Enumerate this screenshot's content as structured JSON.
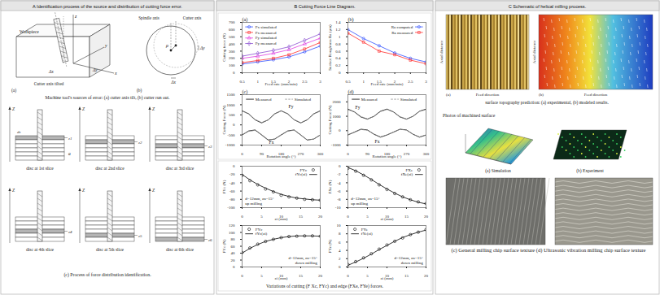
{
  "panels": {
    "A": {
      "title": "A Identification process of the source and distribution of cutting force error.",
      "fig_a": {
        "tag": "(a)",
        "workpiece": "Workpiece",
        "x": "x",
        "y": "y",
        "z": "z",
        "dx": "Δx",
        "dy": "Δy",
        "tilt": "Cutter axis tilted"
      },
      "fig_b": {
        "tag": "(b)",
        "spindle": "Spindle axis",
        "cutter": "Cutter axis",
        "rho": "ρ",
        "dx": "Δx",
        "dy": "Δy"
      },
      "caption_ab": "Machine tool's sources of error: (a) cutter axis tilt, (b) cutter run out.",
      "slices": {
        "axis": "Z",
        "depth": "a",
        "dz": "dz",
        "items": [
          {
            "label": "disc at 1st slice",
            "z": "z1"
          },
          {
            "label": "disc at 2nd slice",
            "z": "z2"
          },
          {
            "label": "disc at 3rd slice",
            "z": "z3"
          },
          {
            "label": "disc at 4th slice",
            "z": "z4"
          },
          {
            "label": "disc at 5th slice",
            "z": "z5"
          },
          {
            "label": "disc at 6th slice",
            "z": "z6"
          }
        ]
      },
      "caption_c": "(c) Process of force distribution identification."
    },
    "B": {
      "title": "B Cutting Force Line Diagram.",
      "caption": "Variations of cutting (F Xc, FYc) and edge (FXe, FYe) forces."
    },
    "C": {
      "title": "C Schematic of helical milling process.",
      "topography": {
        "axis_y": "Axial distance",
        "axis_x": "Feed direction",
        "tags": [
          "(a)",
          "(b)"
        ],
        "caption": "surface topography prediction: (a) experimental, (b) modeled results."
      },
      "surface": {
        "title": "Photos of machined surface",
        "labels": [
          "(a) Simulation",
          "(b) Experiment"
        ]
      },
      "chips": {
        "caption": "(c) General milling chip surface texture (d) Ultrasonic vibration milling chip surface texture"
      }
    }
  },
  "chart_data": [
    {
      "tag": "(a)",
      "type": "line",
      "xlabel": "Feed rate (mm/min)",
      "ylabel": "Cutting force (N)",
      "x": [
        0.5,
        1,
        1.5,
        2,
        2.5,
        3
      ],
      "xlim": [
        0.5,
        3
      ],
      "xticks": [
        0.5,
        1,
        1.5,
        2,
        2.5,
        3
      ],
      "ylim": [
        0,
        700
      ],
      "yticks": [
        0,
        100,
        200,
        300,
        400,
        500,
        600,
        700
      ],
      "legend": "top-left",
      "series": [
        {
          "name": "Fx simulated",
          "color": "#2f4fff",
          "marker": "circle",
          "line_style": "solid",
          "values": [
            120,
            150,
            180,
            220,
            290,
            370
          ]
        },
        {
          "name": "Fx measured",
          "color": "#ff2a2a",
          "marker": "square",
          "line_style": "solid",
          "values": [
            140,
            170,
            200,
            250,
            330,
            420
          ]
        },
        {
          "name": "Fy simulated",
          "color": "#e03ee0",
          "marker": "triangle",
          "line_style": "solid",
          "values": [
            200,
            230,
            270,
            320,
            400,
            480
          ]
        },
        {
          "name": "Fy measured",
          "color": "#8a4fd0",
          "marker": "diamond",
          "line_style": "solid",
          "values": [
            230,
            270,
            310,
            360,
            450,
            540
          ]
        }
      ]
    },
    {
      "tag": "(b)",
      "type": "line",
      "xlabel": "Feed rate (mm/min)",
      "ylabel": "Surface Roughness Ra (μm)",
      "x": [
        0.5,
        1,
        1.5,
        2,
        2.5,
        3
      ],
      "xlim": [
        0.5,
        3
      ],
      "xticks": [
        0.5,
        1,
        1.5,
        2,
        2.5,
        3
      ],
      "ylim": [
        0,
        1.4
      ],
      "yticks": [
        0,
        0.2,
        0.4,
        0.6,
        0.8,
        1,
        1.2,
        1.4
      ],
      "legend": "top-right",
      "series": [
        {
          "name": "Ra computed",
          "color": "#2f4fff",
          "marker": "circle",
          "line_style": "solid",
          "values": [
            1.2,
            0.95,
            0.75,
            0.55,
            0.4,
            0.3
          ]
        },
        {
          "name": "Ra measured",
          "color": "#ff2a2a",
          "marker": "square",
          "line_style": "solid",
          "values": [
            1.1,
            0.85,
            0.6,
            0.5,
            0.35,
            0.25
          ]
        }
      ]
    },
    {
      "tag": "(c)",
      "type": "line",
      "xlabel": "Rotation angle (°)",
      "ylabel": "Cutting Force (N)",
      "x": [
        0,
        30,
        60,
        90,
        120,
        150,
        180,
        210,
        240,
        270,
        300,
        330,
        360
      ],
      "xlim": [
        0,
        360
      ],
      "xticks": [
        0,
        90,
        180,
        270,
        360
      ],
      "ylim": [
        -1000,
        1500
      ],
      "yticks": [
        -1000,
        -500,
        0,
        500,
        1000,
        1500
      ],
      "legend": "top",
      "series": [
        {
          "name": "Measured",
          "color": "#000000",
          "line_style": "solid",
          "values": [
            700,
            550,
            250,
            100,
            250,
            550,
            700,
            550,
            250,
            100,
            250,
            550,
            700
          ]
        },
        {
          "name": "Simulated",
          "color": "#8c8c8c",
          "line_style": "dashed",
          "values": [
            680,
            560,
            270,
            120,
            240,
            540,
            690,
            560,
            260,
            110,
            260,
            540,
            680
          ]
        },
        {
          "name": "Measured",
          "color": "#000000",
          "line_style": "solid",
          "values": [
            -500,
            -300,
            -250,
            -500,
            -750,
            -700,
            -500,
            -300,
            -250,
            -500,
            -750,
            -700,
            -500
          ]
        },
        {
          "name": "Simulated",
          "color": "#8c8c8c",
          "line_style": "dashed",
          "values": [
            -480,
            -320,
            -270,
            -480,
            -730,
            -720,
            -480,
            -310,
            -260,
            -490,
            -740,
            -710,
            -490
          ]
        }
      ],
      "annotations": [
        {
          "text": "Fy",
          "x": 225,
          "y": 900
        },
        {
          "text": "Fx",
          "x": 135,
          "y": -880
        }
      ]
    },
    {
      "tag": "(d)",
      "type": "line",
      "xlabel": "Rotation angle (°)",
      "ylabel": "Cutting Force (N)",
      "x": [
        0,
        30,
        60,
        90,
        120,
        150,
        180,
        210,
        240,
        270,
        300,
        330,
        360
      ],
      "xlim": [
        0,
        360
      ],
      "xticks": [
        0,
        90,
        180,
        270,
        360
      ],
      "ylim": [
        -1000,
        2500
      ],
      "yticks": [
        -1000,
        0,
        1000,
        2000
      ],
      "legend": "top",
      "series": [
        {
          "name": "Measured",
          "color": "#000000",
          "line_style": "solid",
          "values": [
            1500,
            1300,
            950,
            800,
            1000,
            1350,
            1500,
            1300,
            950,
            800,
            1000,
            1350,
            1500
          ]
        },
        {
          "name": "Simulated",
          "color": "#8c8c8c",
          "line_style": "dashed",
          "values": [
            1450,
            1320,
            980,
            820,
            980,
            1330,
            1470,
            1310,
            970,
            810,
            990,
            1340,
            1460
          ]
        },
        {
          "name": "Measured",
          "color": "#000000",
          "line_style": "solid",
          "values": [
            -300,
            -100,
            100,
            50,
            -250,
            -450,
            -300,
            -100,
            100,
            50,
            -250,
            -450,
            -300
          ]
        },
        {
          "name": "Simulated",
          "color": "#8c8c8c",
          "line_style": "dashed",
          "values": [
            -280,
            -120,
            80,
            30,
            -230,
            -430,
            -290,
            -110,
            90,
            40,
            -240,
            -440,
            -290
          ]
        }
      ],
      "annotations": [
        {
          "text": "Fy",
          "x": 45,
          "y": 1600
        },
        {
          "text": "Fx",
          "x": 135,
          "y": -750
        }
      ]
    },
    {
      "type": "line",
      "xlabel": "zi (mm)",
      "ylabel": "FYc (N)",
      "x": [
        0,
        2,
        4,
        6,
        8,
        10,
        12,
        14,
        16,
        18,
        20
      ],
      "xlim": [
        0,
        20
      ],
      "xticks": [
        0,
        5,
        10,
        15,
        20
      ],
      "ylim": [
        -100,
        0
      ],
      "yticks": [
        -100,
        -80,
        -60,
        -40,
        -20,
        0
      ],
      "legend": "top-right",
      "series": [
        {
          "name": "FYc",
          "type": "scatter",
          "marker": "circle",
          "color": "#000000",
          "values": [
            -22,
            -35,
            -45,
            -55,
            -62,
            -70,
            -74,
            -77,
            -80,
            -81,
            -82
          ]
        },
        {
          "name": "fYc(zi)",
          "type": "line",
          "line_style": "solid",
          "color": "#000000",
          "values": [
            -20,
            -33,
            -44,
            -53,
            -61,
            -68,
            -73,
            -77,
            -79,
            -81,
            -82
          ]
        }
      ],
      "annotations": [
        {
          "text": "d=12mm, zn=15°"
        },
        {
          "text": "up milling"
        }
      ]
    },
    {
      "type": "line",
      "xlabel": "zi (mm)",
      "ylabel": "FXe (N)",
      "x": [
        0,
        2,
        4,
        6,
        8,
        10,
        12,
        14,
        16,
        18,
        20
      ],
      "xlim": [
        0,
        20
      ],
      "xticks": [
        0,
        5,
        10,
        15,
        20
      ],
      "ylim": [
        -10,
        0
      ],
      "yticks": [
        -10,
        -8,
        -6,
        -4,
        -2,
        0
      ],
      "legend": "top-right",
      "series": [
        {
          "name": "FXe",
          "type": "scatter",
          "marker": "circle",
          "color": "#000000",
          "values": [
            -0.5,
            -1.2,
            -2.2,
            -3.3,
            -4.5,
            -5.6,
            -6.6,
            -7.4,
            -8.1,
            -8.6,
            -9
          ]
        },
        {
          "name": "fXe(zi)",
          "type": "line",
          "line_style": "solid",
          "color": "#000000",
          "values": [
            -0.3,
            -1.1,
            -2.1,
            -3.2,
            -4.4,
            -5.5,
            -6.5,
            -7.4,
            -8.1,
            -8.7,
            -9.1
          ]
        }
      ],
      "annotations": [
        {
          "text": "d=12mm, zn=15°"
        },
        {
          "text": "up milling"
        }
      ]
    },
    {
      "type": "line",
      "xlabel": "zi (mm)",
      "ylabel": "FYc (N)",
      "x": [
        0,
        2,
        4,
        6,
        8,
        10,
        12,
        14,
        16,
        18,
        20
      ],
      "xlim": [
        0,
        20
      ],
      "xticks": [
        0,
        5,
        10,
        15,
        20
      ],
      "ylim": [
        0,
        120
      ],
      "yticks": [
        0,
        20,
        40,
        60,
        80,
        100,
        120
      ],
      "legend": "top-left",
      "series": [
        {
          "name": "FYc",
          "type": "scatter",
          "marker": "circle",
          "color": "#000000",
          "values": [
            42,
            55,
            66,
            74,
            80,
            85,
            88,
            89,
            90,
            90,
            89
          ]
        },
        {
          "name": "fYc(zi)",
          "type": "line",
          "line_style": "solid",
          "color": "#000000",
          "values": [
            40,
            54,
            65,
            74,
            80,
            85,
            88,
            90,
            90,
            90,
            89
          ]
        }
      ],
      "annotations": [
        {
          "text": "d=12mm, zn=15°"
        },
        {
          "text": "down milling"
        }
      ]
    },
    {
      "type": "line",
      "xlabel": "zi (mm)",
      "ylabel": "FYe (N)",
      "x": [
        0,
        2,
        4,
        6,
        8,
        10,
        12,
        14,
        16,
        18,
        20
      ],
      "xlim": [
        0,
        20
      ],
      "xticks": [
        0,
        5,
        10,
        15,
        20
      ],
      "ylim": [
        0,
        10
      ],
      "yticks": [
        0,
        2,
        4,
        6,
        8,
        10
      ],
      "legend": "top-left",
      "series": [
        {
          "name": "FYe",
          "type": "scatter",
          "marker": "circle",
          "color": "#000000",
          "values": [
            0.6,
            1.3,
            2.2,
            3.2,
            4.3,
            5.3,
            6.2,
            7.0,
            7.8,
            8.4,
            9.0
          ]
        },
        {
          "name": "fYe(zi)",
          "type": "line",
          "line_style": "solid",
          "color": "#000000",
          "values": [
            0.4,
            1.2,
            2.1,
            3.1,
            4.2,
            5.2,
            6.2,
            7.1,
            7.8,
            8.4,
            8.9
          ]
        }
      ],
      "annotations": [
        {
          "text": "d=12mm, zn=15°"
        },
        {
          "text": "down milling"
        }
      ]
    }
  ]
}
